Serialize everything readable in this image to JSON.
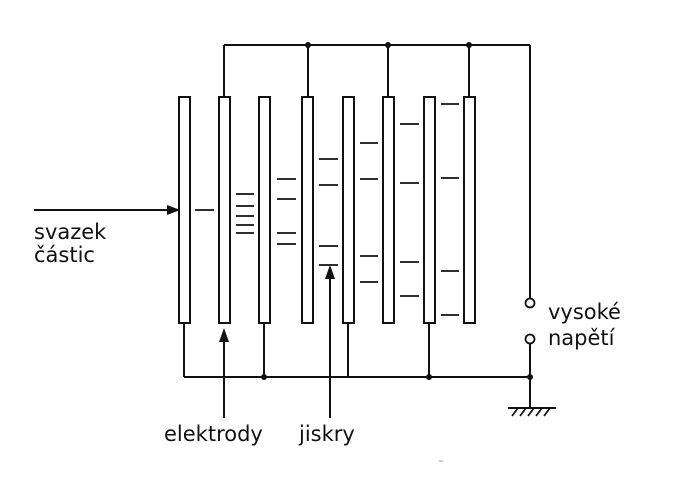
{
  "labels": {
    "beam_line1": "svazek",
    "beam_line2": "částic",
    "electrodes": "elektrody",
    "sparks": "jiskry",
    "high_voltage_line1": "vysoké",
    "high_voltage_line2": "napětí"
  },
  "colors": {
    "ink": "#111111",
    "background": "#ffffff"
  }
}
